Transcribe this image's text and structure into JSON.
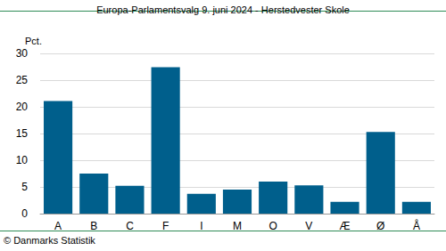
{
  "chart_data": {
    "type": "bar",
    "title": "Europa-Parlamentsvalg 9. juni 2024 - Herstedvester Skole",
    "ylabel": "Pct.",
    "source": "© Danmarks Statistik",
    "categories": [
      "A",
      "B",
      "C",
      "F",
      "I",
      "M",
      "O",
      "V",
      "Æ",
      "Ø",
      "Å"
    ],
    "values": [
      21.1,
      7.5,
      5.2,
      27.4,
      3.7,
      4.5,
      6.0,
      5.3,
      2.2,
      15.3,
      2.2
    ],
    "color": "#005f8c",
    "ylim": [
      0,
      30
    ],
    "yticks": [
      0,
      5,
      10,
      15,
      20,
      25,
      30
    ],
    "grid": true
  }
}
